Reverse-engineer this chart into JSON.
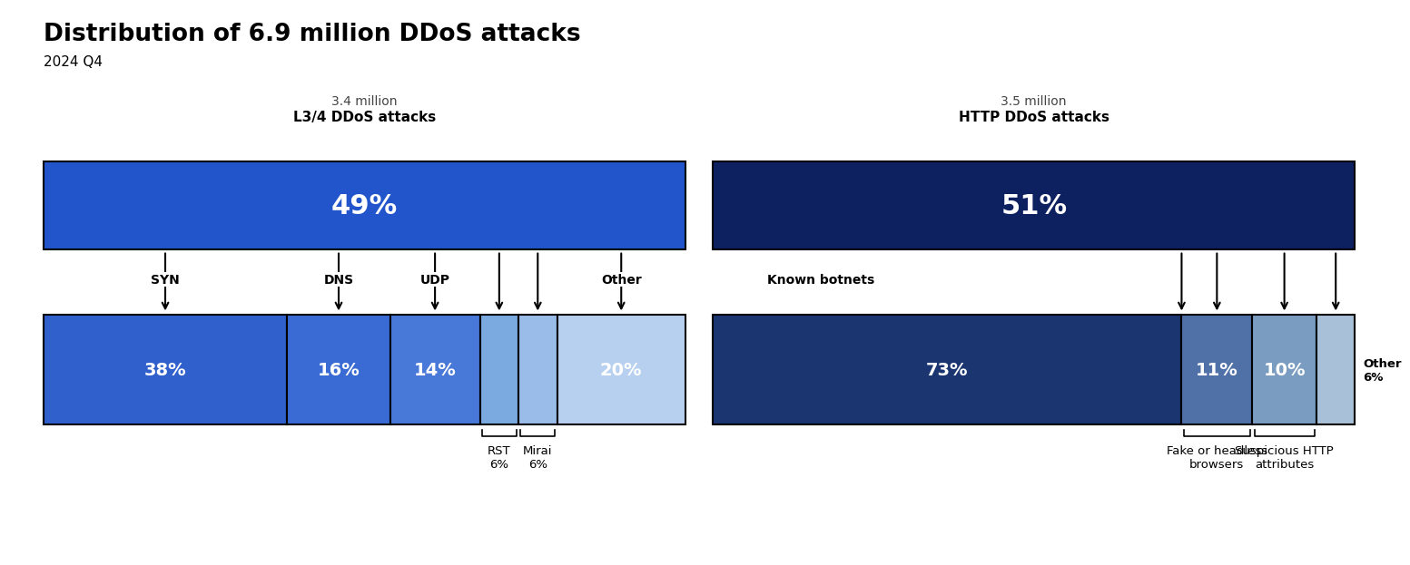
{
  "title": "Distribution of 6.9 million DDoS attacks",
  "subtitle": "2024 Q4",
  "left_label_top": "3.4 million",
  "left_label_bottom": "L3/4 DDoS attacks",
  "right_label_top": "3.5 million",
  "right_label_bottom": "HTTP DDoS attacks",
  "left_pct": "49%",
  "right_pct": "51%",
  "left_bar_color": "#2255CC",
  "right_bar_color": "#0D2060",
  "left_segments": [
    {
      "label": "SYN",
      "pct": "38%",
      "value": 38,
      "color": "#3060CC"
    },
    {
      "label": "DNS",
      "pct": "16%",
      "value": 16,
      "color": "#3A6AD4"
    },
    {
      "label": "UDP",
      "pct": "14%",
      "value": 14,
      "color": "#4878D8"
    },
    {
      "label": "RST",
      "pct": "",
      "value": 6,
      "color": "#7BAAE0"
    },
    {
      "label": "Mirai",
      "pct": "",
      "value": 6,
      "color": "#9ABCE8"
    },
    {
      "label": "Other",
      "pct": "20%",
      "value": 20,
      "color": "#B8D0F0"
    }
  ],
  "right_segments": [
    {
      "label": "Known botnets",
      "pct": "73%",
      "value": 73,
      "color": "#1A3570"
    },
    {
      "label": "Fake or headless browsers",
      "pct": "11%",
      "value": 11,
      "color": "#5070A8"
    },
    {
      "label": "Suspicious HTTP attributes",
      "pct": "10%",
      "value": 10,
      "color": "#7A9CC0"
    },
    {
      "label": "Other",
      "pct": "6%",
      "value": 6,
      "color": "#A8C0D8"
    }
  ],
  "background_color": "#FFFFFF"
}
